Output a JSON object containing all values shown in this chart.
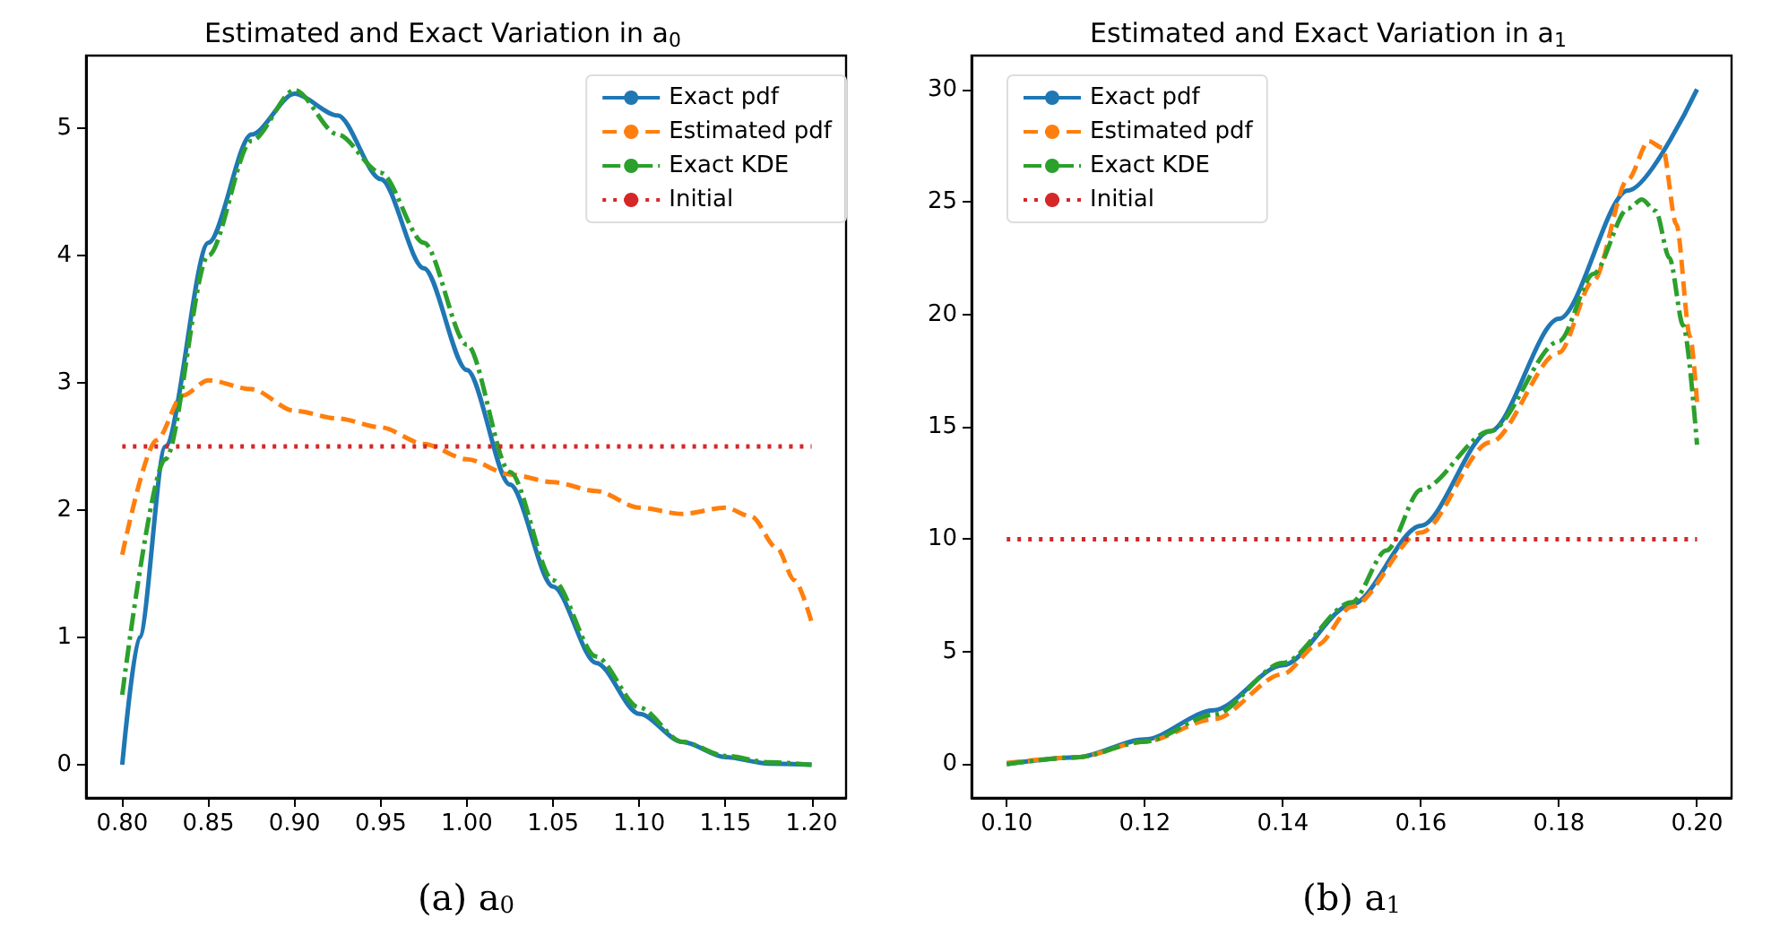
{
  "chart_data": [
    {
      "type": "line",
      "title": "Estimated and Exact Variation in a$_{0}$",
      "xlabel": "(a) a$_{0}$",
      "xlim": [
        0.779,
        1.22
      ],
      "xticks": [
        {
          "value": 0.8,
          "label": "0.80"
        },
        {
          "value": 0.85,
          "label": "0.85"
        },
        {
          "value": 0.9,
          "label": "0.90"
        },
        {
          "value": 0.95,
          "label": "0.95"
        },
        {
          "value": 1.0,
          "label": "1.00"
        },
        {
          "value": 1.05,
          "label": "1.05"
        },
        {
          "value": 1.1,
          "label": "1.10"
        },
        {
          "value": 1.15,
          "label": "1.15"
        },
        {
          "value": 1.2,
          "label": "1.20"
        }
      ],
      "ylim": [
        -0.26,
        5.57
      ],
      "yticks": [
        0,
        1,
        2,
        3,
        4,
        5
      ],
      "grid": false,
      "legend": "top right",
      "marker": "none",
      "series": [
        {
          "name": "Exact pdf",
          "color": "#1f77b4",
          "line_style": "solid",
          "x": [
            0.8,
            0.81,
            0.825,
            0.85,
            0.875,
            0.9,
            0.925,
            0.95,
            0.975,
            1.0,
            1.025,
            1.05,
            1.075,
            1.1,
            1.125,
            1.15,
            1.175,
            1.2
          ],
          "values": [
            0,
            1.0,
            2.5,
            4.1,
            4.95,
            5.27,
            5.1,
            4.6,
            3.9,
            3.1,
            2.2,
            1.4,
            0.8,
            0.4,
            0.18,
            0.06,
            0.01,
            0
          ]
        },
        {
          "name": "Estimated pdf",
          "color": "#ff7f0e",
          "line_style": "dashed",
          "x": [
            0.8,
            0.82,
            0.835,
            0.85,
            0.875,
            0.9,
            0.925,
            0.95,
            0.975,
            1.0,
            1.025,
            1.05,
            1.075,
            1.1,
            1.125,
            1.15,
            1.165,
            1.18,
            1.19,
            1.2
          ],
          "values": [
            1.65,
            2.55,
            2.9,
            3.02,
            2.95,
            2.78,
            2.72,
            2.65,
            2.52,
            2.4,
            2.28,
            2.22,
            2.15,
            2.02,
            1.97,
            2.02,
            1.95,
            1.7,
            1.45,
            1.12
          ]
        },
        {
          "name": "Exact KDE",
          "color": "#2ca02c",
          "line_style": "dashdot",
          "x": [
            0.8,
            0.825,
            0.85,
            0.875,
            0.9,
            0.925,
            0.95,
            0.975,
            1.0,
            1.025,
            1.05,
            1.075,
            1.1,
            1.125,
            1.15,
            1.175,
            1.2
          ],
          "values": [
            0.55,
            2.4,
            4.0,
            4.9,
            5.3,
            4.95,
            4.65,
            4.1,
            3.3,
            2.3,
            1.45,
            0.85,
            0.45,
            0.18,
            0.07,
            0.02,
            0
          ]
        },
        {
          "name": "Initial",
          "color": "#d62728",
          "line_style": "dotted",
          "x": [
            0.8,
            1.2
          ],
          "values": [
            2.5,
            2.5
          ]
        }
      ]
    },
    {
      "type": "line",
      "title": "Estimated and Exact Variation in a$_{1}$",
      "xlabel": "(b) a$_{1}$",
      "xlim": [
        0.0949,
        0.205
      ],
      "xticks": [
        {
          "value": 0.1,
          "label": "0.10"
        },
        {
          "value": 0.12,
          "label": "0.12"
        },
        {
          "value": 0.14,
          "label": "0.14"
        },
        {
          "value": 0.16,
          "label": "0.16"
        },
        {
          "value": 0.18,
          "label": "0.18"
        },
        {
          "value": 0.2,
          "label": "0.20"
        }
      ],
      "ylim": [
        -1.5,
        31.5
      ],
      "yticks": [
        0,
        5,
        10,
        15,
        20,
        25,
        30
      ],
      "grid": false,
      "legend": "top left",
      "marker": "none",
      "series": [
        {
          "name": "Exact pdf",
          "color": "#1f77b4",
          "line_style": "solid",
          "x": [
            0.1,
            0.11,
            0.12,
            0.13,
            0.14,
            0.15,
            0.16,
            0.17,
            0.18,
            0.19,
            0.2
          ],
          "values": [
            0,
            0.3,
            1.1,
            2.4,
            4.4,
            7.1,
            10.6,
            14.8,
            19.8,
            25.5,
            30
          ]
        },
        {
          "name": "Estimated pdf",
          "color": "#ff7f0e",
          "line_style": "dashed",
          "x": [
            0.1,
            0.11,
            0.12,
            0.13,
            0.14,
            0.145,
            0.15,
            0.16,
            0.17,
            0.18,
            0.185,
            0.19,
            0.193,
            0.195,
            0.197,
            0.199,
            0.2
          ],
          "values": [
            0.05,
            0.3,
            1.0,
            2.0,
            4.0,
            5.3,
            7.0,
            10.3,
            14.3,
            18.3,
            21.5,
            26.0,
            27.7,
            27.4,
            24,
            19,
            16.1
          ]
        },
        {
          "name": "Exact KDE",
          "color": "#2ca02c",
          "line_style": "dashdot",
          "x": [
            0.1,
            0.11,
            0.12,
            0.13,
            0.14,
            0.15,
            0.155,
            0.16,
            0.17,
            0.18,
            0.185,
            0.19,
            0.192,
            0.194,
            0.196,
            0.198,
            0.2
          ],
          "values": [
            0,
            0.3,
            1.0,
            2.2,
            4.5,
            7.2,
            9.5,
            12.2,
            14.8,
            18.8,
            21.8,
            24.7,
            25.1,
            24.6,
            22.5,
            19.5,
            14.2
          ]
        },
        {
          "name": "Initial",
          "color": "#d62728",
          "line_style": "dotted",
          "x": [
            0.1,
            0.2
          ],
          "values": [
            10,
            10
          ]
        }
      ]
    }
  ]
}
